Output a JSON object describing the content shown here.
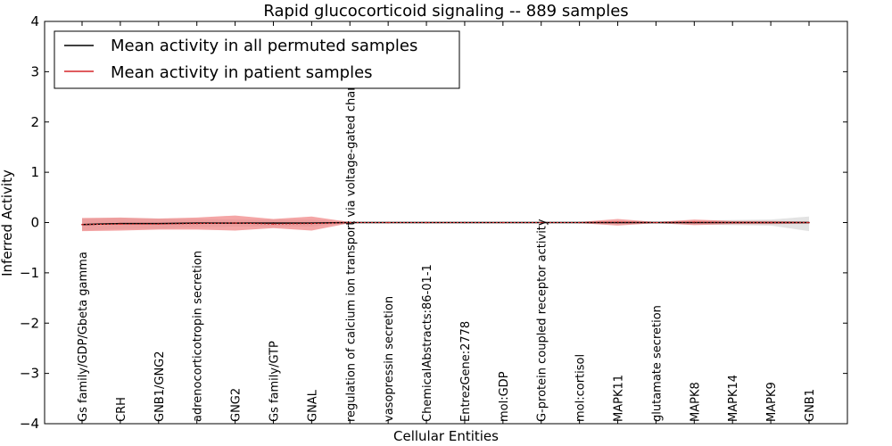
{
  "chart_data": {
    "type": "line",
    "title": "Rapid glucocorticoid signaling -- 889 samples",
    "xlabel": "Cellular Entities",
    "ylabel": "Inferred Activity",
    "ylim": [
      -4,
      4
    ],
    "yticks": [
      -4,
      -3,
      -2,
      -1,
      0,
      1,
      2,
      3,
      4
    ],
    "ytick_labels": [
      "−4",
      "−3",
      "−2",
      "−1",
      "0",
      "1",
      "2",
      "3",
      "4"
    ],
    "legend_placement": "top-left",
    "grid": false,
    "categories": [
      "Gs family/GDP/Gbeta gamma",
      "CRH",
      "GNB1/GNG2",
      "adrenocorticotropin secretion",
      "GNG2",
      "Gs family/GTP",
      "GNAL",
      "regulation of calcium ion transport via voltage-gated channel",
      "vasopressin secretion",
      "ChemicalAbstracts:86-01-1",
      "EntrezGene:2778",
      "mol:GDP",
      "G-protein coupled receptor activity",
      "mol:cortisol",
      "MAPK11",
      "glutamate secretion",
      "MAPK8",
      "MAPK14",
      "MAPK9",
      "GNB1"
    ],
    "series": [
      {
        "name": "Mean activity in all permuted samples",
        "color": "#000000",
        "band_color": "#c8c8c8",
        "values": [
          -0.04,
          -0.02,
          -0.02,
          -0.01,
          -0.01,
          -0.01,
          -0.01,
          0.0,
          0.0,
          0.0,
          0.0,
          0.0,
          0.0,
          0.0,
          0.0,
          0.0,
          0.0,
          0.0,
          0.0,
          0.0
        ],
        "band_upper": [
          0.08,
          0.09,
          0.08,
          0.07,
          0.06,
          0.06,
          0.06,
          0.01,
          0.01,
          0.01,
          0.01,
          0.01,
          0.01,
          0.01,
          0.03,
          0.02,
          0.04,
          0.05,
          0.06,
          0.12
        ],
        "band_lower": [
          -0.16,
          -0.13,
          -0.12,
          -0.09,
          -0.08,
          -0.08,
          -0.08,
          -0.01,
          -0.01,
          -0.01,
          -0.01,
          -0.01,
          -0.01,
          -0.01,
          -0.03,
          -0.02,
          -0.04,
          -0.05,
          -0.06,
          -0.17
        ]
      },
      {
        "name": "Mean activity in patient samples",
        "color": "#d62728",
        "band_color": "#f08080",
        "values": [
          -0.04,
          -0.03,
          -0.03,
          -0.02,
          -0.01,
          -0.03,
          -0.02,
          0.0,
          0.0,
          0.0,
          0.0,
          0.0,
          0.0,
          0.0,
          0.01,
          0.0,
          0.01,
          0.0,
          0.0,
          0.0
        ],
        "band_upper": [
          0.09,
          0.1,
          0.08,
          0.1,
          0.14,
          0.07,
          0.12,
          0.01,
          0.01,
          0.01,
          0.01,
          0.01,
          0.01,
          0.01,
          0.07,
          0.01,
          0.06,
          0.03,
          0.03,
          0.02
        ],
        "band_lower": [
          -0.17,
          -0.16,
          -0.14,
          -0.14,
          -0.16,
          -0.11,
          -0.16,
          -0.01,
          -0.01,
          -0.01,
          -0.01,
          -0.01,
          -0.01,
          -0.01,
          -0.06,
          -0.01,
          -0.05,
          -0.03,
          -0.03,
          -0.02
        ]
      }
    ]
  }
}
